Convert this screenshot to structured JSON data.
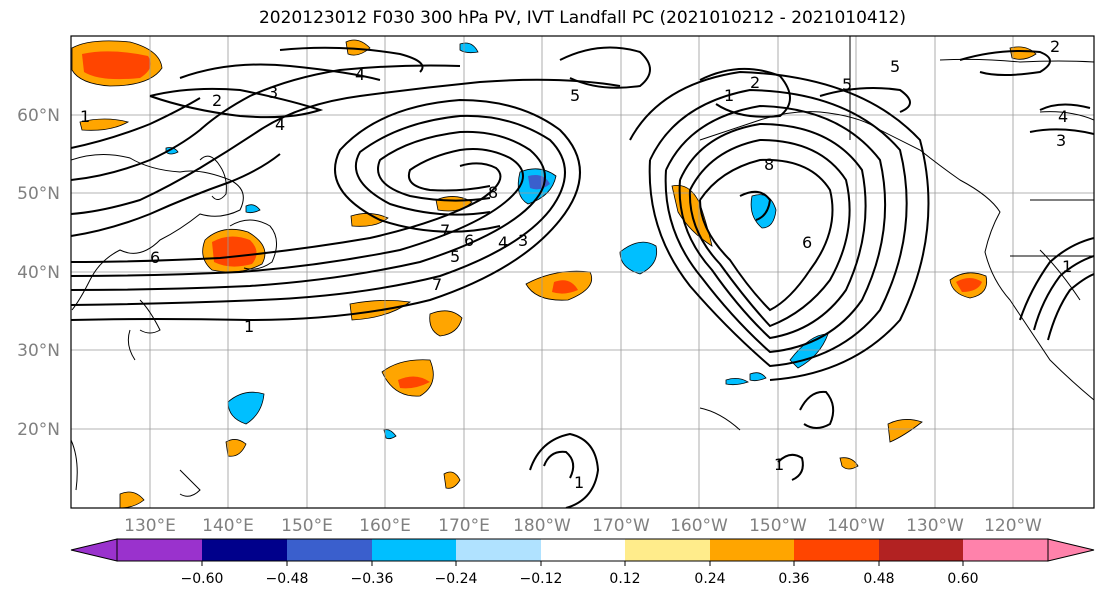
{
  "title": "2020123012 F030 300 hPa PV, IVT Landfall PC (2021010212 - 2021010412)",
  "map": {
    "lon_labels": [
      "130°E",
      "140°E",
      "150°E",
      "160°E",
      "170°E",
      "180°W",
      "170°W",
      "160°W",
      "150°W",
      "140°W",
      "130°W",
      "120°W"
    ],
    "lat_labels": [
      "60°N",
      "50°N",
      "40°N",
      "30°N",
      "20°N"
    ],
    "contour_labels": [
      "2",
      "3",
      "4",
      "4",
      "5",
      "5",
      "6",
      "7",
      "7",
      "6",
      "5",
      "4",
      "3",
      "8",
      "1",
      "1",
      "2",
      "8",
      "5",
      "1",
      "2",
      "3",
      "4",
      "6",
      "1",
      "1",
      "1"
    ]
  },
  "colorbar": {
    "ticks": [
      "−0.60",
      "−0.48",
      "−0.36",
      "−0.24",
      "−0.12",
      "0.12",
      "0.24",
      "0.36",
      "0.48",
      "0.60"
    ],
    "colors": [
      "#9a32cd",
      "#00008b",
      "#3a5fcd",
      "#00bfff",
      "#b0e2ff",
      "#ffffff",
      "#ffec8b",
      "#ffa500",
      "#ff4500",
      "#b22222",
      "#ff82ab"
    ],
    "under_color": "#9a32cd",
    "over_color": "#ff82ab"
  }
}
